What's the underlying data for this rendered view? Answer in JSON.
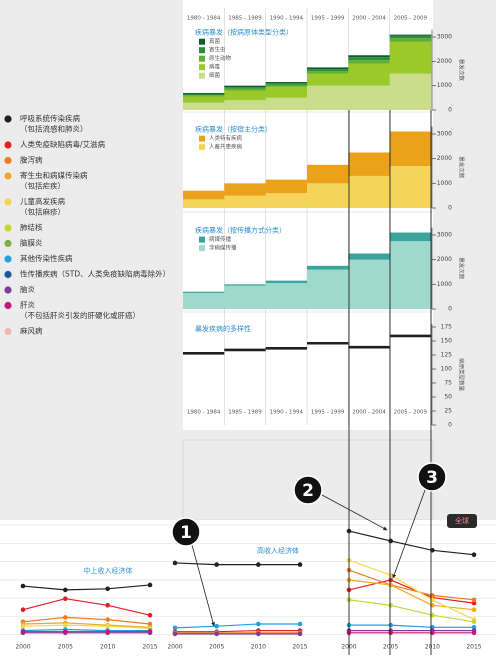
{
  "legend": [
    {
      "name": "呼吸系统传染疾病",
      "note": "（包括流感和肺炎）",
      "color": "#231f20"
    },
    {
      "name": "人类免疫缺陷病毒/艾滋病",
      "color": "#e31e24"
    },
    {
      "name": "腹泻病",
      "color": "#f07b1f"
    },
    {
      "name": "寄生虫和病媒传染病",
      "note": "（包括疟疾）",
      "color": "#f4a81d"
    },
    {
      "name": "儿童高发疾病",
      "note": "（包括麻疹）",
      "color": "#f7d74a"
    },
    {
      "name": "肺结核",
      "color": "#c4d82e"
    },
    {
      "name": "脑膜炎",
      "color": "#7cb342"
    },
    {
      "name": "其他传染性疾病",
      "color": "#1ea1dc"
    },
    {
      "name": "性传播疾病（STD、人类免疫缺陷病毒除外）",
      "color": "#1b5a96"
    },
    {
      "name": "脑炎",
      "color": "#7d3c98"
    },
    {
      "name": "肝炎",
      "note": "（不包括肝炎引发的肝硬化或肝癌）",
      "color": "#c2187a"
    },
    {
      "name": "麻风病",
      "color": "#f2b6b6"
    }
  ],
  "chart_data": [
    {
      "type": "stacked-step",
      "title": "疾病暴发（按病原体类型分类）",
      "y_label": "暴发次数",
      "categories": [
        "1980 - 1984",
        "1985 - 1989",
        "1990 - 1994",
        "1995 - 1999",
        "2000 - 2004",
        "2005 - 2009"
      ],
      "series": [
        {
          "name": "真菌",
          "color": "#0d5e2e",
          "values": [
            40,
            60,
            50,
            70,
            80,
            50
          ]
        },
        {
          "name": "寄生虫",
          "color": "#2e8b3a",
          "values": [
            50,
            60,
            70,
            80,
            120,
            100
          ]
        },
        {
          "name": "原生动物",
          "color": "#5fb030",
          "values": [
            60,
            80,
            80,
            100,
            150,
            150
          ]
        },
        {
          "name": "病毒",
          "color": "#9cc92a",
          "values": [
            250,
            400,
            450,
            500,
            900,
            1300
          ]
        },
        {
          "name": "细菌",
          "color": "#c9dd8a",
          "values": [
            300,
            400,
            500,
            1000,
            1000,
            1500
          ]
        }
      ],
      "ylim": [
        0,
        3300
      ],
      "yticks": [
        0,
        1000,
        2000,
        3000
      ]
    },
    {
      "type": "stacked-step",
      "title": "疾病暴发（按宿主分类）",
      "y_label": "暴发次数",
      "categories": [
        "1980 - 1984",
        "1985 - 1989",
        "1990 - 1994",
        "1995 - 1999",
        "2000 - 2004",
        "2005 - 2009"
      ],
      "series": [
        {
          "name": "人类特有疾病",
          "color": "#eba21a",
          "values": [
            350,
            500,
            550,
            750,
            950,
            1400
          ]
        },
        {
          "name": "人畜共患疾病",
          "color": "#f6d35a",
          "values": [
            350,
            500,
            600,
            1000,
            1300,
            1700
          ]
        }
      ],
      "ylim": [
        0,
        3300
      ],
      "yticks": [
        0,
        1000,
        2000,
        3000
      ]
    },
    {
      "type": "stacked-step",
      "title": "疾病暴发（按传播方式分类）",
      "y_label": "暴发次数",
      "categories": [
        "1980 - 1984",
        "1985 - 1989",
        "1990 - 1994",
        "1995 - 1999",
        "2000 - 2004",
        "2005 - 2009"
      ],
      "series": [
        {
          "name": "病媒传播",
          "color": "#3aa59c",
          "values": [
            50,
            50,
            100,
            150,
            250,
            350
          ]
        },
        {
          "name": "非病媒传播",
          "color": "#9fd8cc",
          "values": [
            650,
            950,
            1050,
            1600,
            2000,
            2750
          ]
        }
      ],
      "ylim": [
        0,
        3300
      ],
      "yticks": [
        0,
        1000,
        2000,
        3000
      ]
    },
    {
      "type": "step-line",
      "title": "暴发疾病的多样性",
      "y_label": "病原类型数量",
      "categories": [
        "1980 - 1984",
        "1985 - 1989",
        "1990 - 1994",
        "1995 - 1999",
        "2000 - 2004",
        "2005 - 2009"
      ],
      "values": [
        128,
        134,
        137,
        146,
        139,
        159
      ],
      "color": "#231f20",
      "ylim": [
        0,
        180
      ],
      "yticks": [
        0,
        25,
        50,
        75,
        100,
        125,
        150,
        175
      ]
    },
    {
      "type": "line",
      "title": "中上收入经济体",
      "x": [
        2000,
        2005,
        2010,
        2015
      ],
      "xlim": [
        2000,
        2015
      ],
      "xticks": [
        2000,
        2005,
        2010,
        2015
      ],
      "ylim": [
        0,
        100
      ],
      "series": [
        {
          "color": "#231f20",
          "values": [
            44.5,
            41,
            42,
            45.5
          ]
        },
        {
          "color": "#e31e24",
          "values": [
            23,
            33,
            27,
            18
          ]
        },
        {
          "color": "#f07b1f",
          "values": [
            12,
            16,
            14,
            10
          ]
        },
        {
          "color": "#f4a81d",
          "values": [
            10,
            11,
            9,
            7
          ]
        },
        {
          "color": "#f7d74a",
          "values": [
            8,
            9,
            8,
            6
          ]
        },
        {
          "color": "#1ea1dc",
          "values": [
            4,
            5,
            4,
            4
          ]
        },
        {
          "color": "#7d3c98",
          "values": [
            2,
            2,
            2,
            2
          ]
        },
        {
          "color": "#c2187a",
          "values": [
            3,
            3,
            3,
            3
          ]
        }
      ]
    },
    {
      "type": "line",
      "title": "高收入经济体",
      "x": [
        2000,
        2005,
        2010,
        2015
      ],
      "xlim": [
        2000,
        2015
      ],
      "xticks": [
        2000,
        2005,
        2010,
        2015
      ],
      "ylim": [
        0,
        100
      ],
      "series": [
        {
          "color": "#231f20",
          "values": [
            65.5,
            64,
            64,
            64
          ]
        },
        {
          "color": "#1ea1dc",
          "values": [
            6.5,
            8,
            10,
            10
          ]
        },
        {
          "color": "#e31e24",
          "values": [
            3,
            3,
            4,
            4
          ]
        },
        {
          "color": "#f07b1f",
          "values": [
            2,
            2,
            2,
            2
          ]
        },
        {
          "color": "#7d3c98",
          "values": [
            1,
            1,
            1,
            1
          ]
        }
      ]
    },
    {
      "type": "line",
      "title": "全球",
      "x": [
        2000,
        2005,
        2010,
        2015
      ],
      "xlim": [
        2000,
        2015
      ],
      "xticks": [
        2000,
        2005,
        2010,
        2015
      ],
      "ylim": [
        0,
        100
      ],
      "series": [
        {
          "color": "#231f20",
          "values": [
            94.5,
            85.5,
            77,
            73
          ]
        },
        {
          "color": "#e31e24",
          "values": [
            41,
            50,
            34,
            29
          ]
        },
        {
          "color": "#f07b1f",
          "values": [
            59,
            45.5,
            36,
            32
          ]
        },
        {
          "color": "#f4a81d",
          "values": [
            50,
            45.5,
            27,
            23
          ]
        },
        {
          "color": "#f7d74a",
          "values": [
            68,
            54.5,
            32,
            14
          ]
        },
        {
          "color": "#c4d82e",
          "values": [
            32,
            27,
            18,
            12
          ]
        },
        {
          "color": "#1ea1dc",
          "values": [
            9,
            9,
            7,
            7
          ]
        },
        {
          "color": "#7d3c98",
          "values": [
            4,
            4,
            4,
            4
          ]
        },
        {
          "color": "#c2187a",
          "values": [
            2,
            2,
            2,
            2
          ]
        }
      ]
    }
  ],
  "annotations": [
    "1",
    "2",
    "3"
  ]
}
